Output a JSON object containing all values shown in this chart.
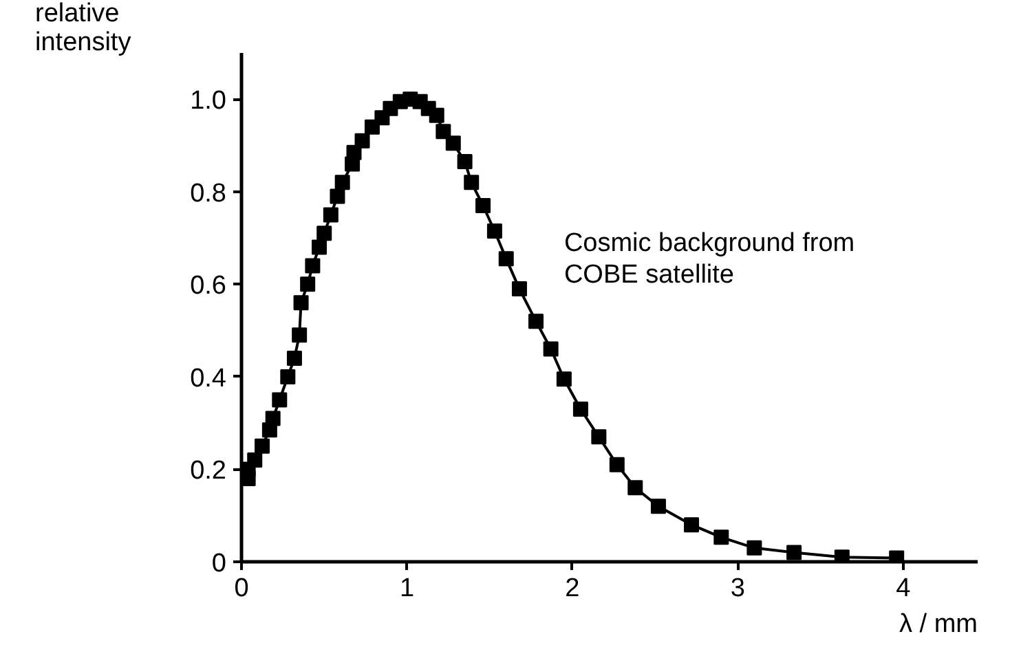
{
  "chart_data": {
    "type": "line",
    "xlabel": "λ / mm",
    "ylabel": "relative intensity",
    "annotations": [
      "Cosmic background from COBE satellite"
    ],
    "xlim": [
      0,
      4.45
    ],
    "ylim": [
      0,
      1.1
    ],
    "xticks": [
      0,
      1,
      2,
      3,
      4
    ],
    "yticks": [
      0,
      {
        "value": 0.2,
        "label": "0.2"
      },
      {
        "value": 0.4,
        "label": "0.4"
      },
      {
        "value": 0.6,
        "label": "0.6"
      },
      {
        "value": 0.8,
        "label": "0.8"
      },
      {
        "value": 1.0,
        "label": "1.0"
      }
    ],
    "grid": false,
    "marker": "square",
    "line_style": "solid",
    "series": [
      {
        "color": "#000000",
        "x": [
          0.04,
          0.04,
          0.08,
          0.125,
          0.17,
          0.19,
          0.23,
          0.28,
          0.32,
          0.35,
          0.36,
          0.4,
          0.43,
          0.47,
          0.5,
          0.54,
          0.58,
          0.61,
          0.67,
          0.68,
          0.73,
          0.79,
          0.85,
          0.9,
          0.96,
          1.02,
          1.08,
          1.13,
          1.18,
          1.22,
          1.28,
          1.35,
          1.39,
          1.46,
          1.53,
          1.6,
          1.68,
          1.78,
          1.87,
          1.95,
          2.05,
          2.16,
          2.27,
          2.38,
          2.52,
          2.72,
          2.9,
          3.1,
          3.34,
          3.63,
          3.96
        ],
        "values": [
          0.18,
          0.2,
          0.22,
          0.25,
          0.285,
          0.31,
          0.35,
          0.4,
          0.44,
          0.49,
          0.56,
          0.6,
          0.64,
          0.68,
          0.71,
          0.75,
          0.79,
          0.82,
          0.86,
          0.885,
          0.91,
          0.94,
          0.96,
          0.98,
          0.995,
          1.0,
          0.995,
          0.98,
          0.965,
          0.93,
          0.905,
          0.865,
          0.82,
          0.77,
          0.715,
          0.655,
          0.59,
          0.52,
          0.46,
          0.395,
          0.33,
          0.27,
          0.21,
          0.16,
          0.12,
          0.08,
          0.053,
          0.03,
          0.02,
          0.01,
          0.008
        ]
      }
    ]
  }
}
